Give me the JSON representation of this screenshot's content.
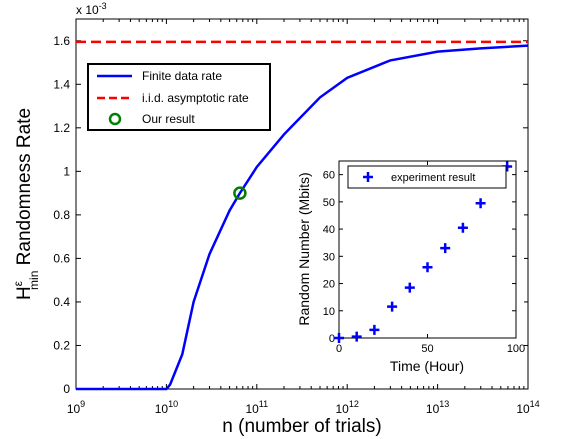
{
  "chart_data": [
    {
      "type": "line",
      "xlabel": "n (number of trials)",
      "ylabel_main": "H",
      "ylabel_sup": "ε",
      "ylabel_sub": "min",
      "ylabel_rest": " Randomness Rate",
      "exponent_label": "x 10",
      "exponent_power": "-3",
      "xscale": "log",
      "xlim": [
        1000000000.0,
        100000000000000.0
      ],
      "ylim": [
        0,
        1.7
      ],
      "x_ticks": [
        {
          "value": 1000000000.0,
          "base": "10",
          "exp": "9"
        },
        {
          "value": 10000000000.0,
          "base": "10",
          "exp": "10"
        },
        {
          "value": 100000000000.0,
          "base": "10",
          "exp": "11"
        },
        {
          "value": 1000000000000.0,
          "base": "10",
          "exp": "12"
        },
        {
          "value": 10000000000000.0,
          "base": "10",
          "exp": "13"
        },
        {
          "value": 100000000000000.0,
          "base": "10",
          "exp": "14"
        }
      ],
      "y_ticks": [
        "0",
        "0.2",
        "0.4",
        "0.6",
        "0.8",
        "1",
        "1.2",
        "1.4",
        "1.6"
      ],
      "series": [
        {
          "name": "Finite data rate",
          "color": "#0000ff",
          "style": "solid",
          "x": [
            1000000000.0,
            10000000000.0,
            11000000000.0,
            15000000000.0,
            20000000000.0,
            30000000000.0,
            50000000000.0,
            65000000000.0,
            100000000000.0,
            200000000000.0,
            500000000000.0,
            1000000000000.0,
            3000000000000.0,
            10000000000000.0,
            30000000000000.0,
            100000000000000.0
          ],
          "y": [
            0,
            0,
            0.02,
            0.16,
            0.4,
            0.62,
            0.82,
            0.9,
            1.02,
            1.17,
            1.34,
            1.43,
            1.51,
            1.55,
            1.565,
            1.578
          ]
        },
        {
          "name": "i.i.d. asymptotic rate",
          "color": "#ff0000",
          "style": "dashed",
          "x": [
            1000000000.0,
            100000000000000.0
          ],
          "y": [
            1.595,
            1.595
          ]
        },
        {
          "name": "Our result",
          "color": "#008000",
          "style": "marker-circle",
          "x": [
            65000000000.0
          ],
          "y": [
            0.9
          ]
        }
      ]
    },
    {
      "type": "scatter",
      "xlabel": "Time (Hour)",
      "ylabel": "Random Number (Mbits)",
      "xlim": [
        0,
        100
      ],
      "ylim": [
        0,
        65
      ],
      "x_ticks": [
        "0",
        "50",
        "100"
      ],
      "y_ticks": [
        "0",
        "10",
        "20",
        "30",
        "40",
        "50",
        "60"
      ],
      "series": [
        {
          "name": "experiment result",
          "color": "#0000ff",
          "marker": "plus",
          "x": [
            0,
            10,
            20,
            30,
            40,
            50,
            60,
            70,
            80,
            90,
            95
          ],
          "y": [
            0,
            0.5,
            3,
            11.5,
            18.5,
            26,
            33,
            40.5,
            49.5,
            57.5,
            63
          ]
        }
      ]
    }
  ]
}
